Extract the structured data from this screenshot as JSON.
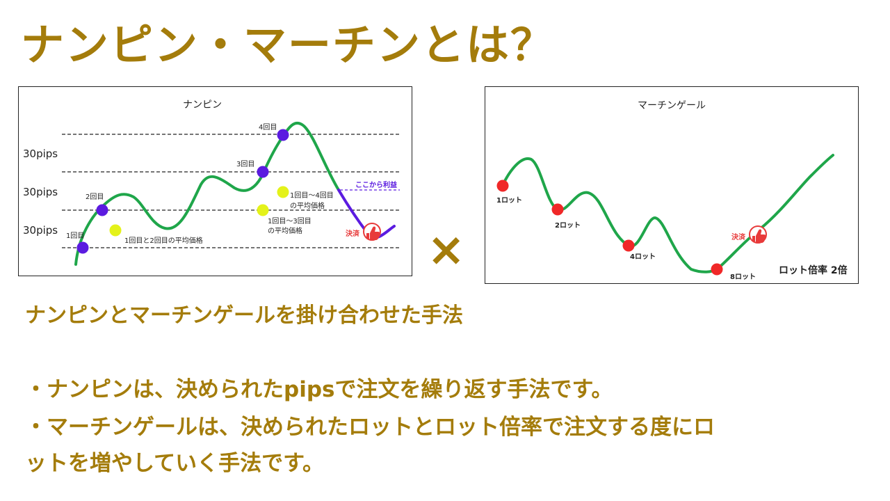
{
  "title": "ナンピン・マーチンとは？",
  "times_symbol": "×",
  "nanpin": {
    "title": "ナンピン",
    "pips_labels": [
      "30pips",
      "30pips",
      "30pips"
    ],
    "entry_labels": [
      "1回目",
      "2回目",
      "3回目",
      "4回目"
    ],
    "average_labels": {
      "avg12": "1回目と2回目の平均価格",
      "avg13_line1": "1回目〜3回目",
      "avg13_line2": "の平均価格",
      "avg14_line1": "1回目〜4回目",
      "avg14_line2": "の平均価格"
    },
    "profit_label": "ここから利益",
    "settle_label": "決済"
  },
  "martin": {
    "title": "マーチンゲール",
    "lot_labels": [
      "1ロット",
      "2ロット",
      "4ロット",
      "8ロット"
    ],
    "settle_label": "決済",
    "multiplier_label": "ロット倍率 2倍"
  },
  "colors": {
    "accent": "#A47C0B",
    "curve": "#1FA64A",
    "entry_dot": "#5B1BE0",
    "avg_dot": "#E4F21A",
    "lot_dot": "#F02828",
    "profit": "#5B1BE0",
    "settle": "#E83A3A"
  },
  "subtitle": "ナンピンとマーチンゲールを掛け合わせた手法",
  "bullets": [
    "・ナンピンは、決められたpipsで注文を繰り返す手法です。",
    "・マーチンゲールは、決められたロットとロット倍率で注文する度にロ",
    "ットを増やしていく手法です。"
  ]
}
